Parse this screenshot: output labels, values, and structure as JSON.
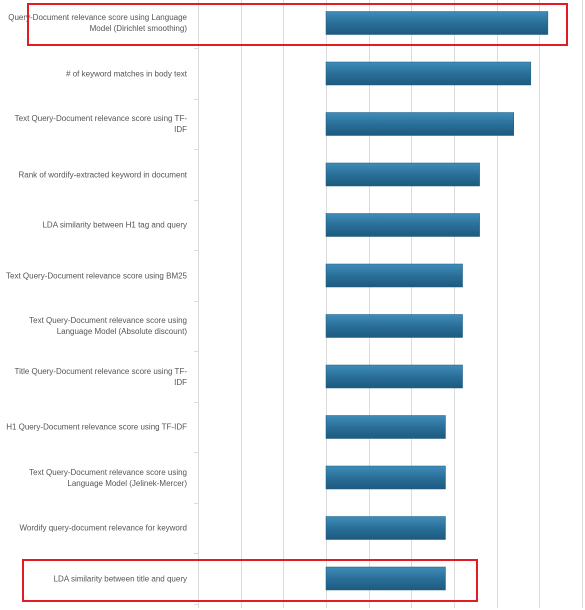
{
  "chart_data": {
    "type": "bar",
    "orientation": "horizontal",
    "categories": [
      "Query-Document relevance score using Language Model (Dirichlet smoothing)",
      "# of keyword matches in body text",
      "Text Query-Document relevance score using TF-IDF",
      "Rank of wordify-extracted keyword in document",
      "LDA similarity between H1 tag and query",
      "Text Query-Document relevance score using BM25",
      "Text Query-Document relevance score using Language Model (Absolute discount)",
      "Title Query-Document relevance score using TF-IDF",
      "H1 Query-Document relevance score using TF-IDF",
      "Text Query-Document relevance score using Language Model (Jelinek-Mercer)",
      "Wordify query-document relevance for keyword",
      "LDA similarity between title and query"
    ],
    "values": [
      0.52,
      0.48,
      0.44,
      0.36,
      0.36,
      0.32,
      0.32,
      0.32,
      0.28,
      0.28,
      0.28,
      0.28
    ],
    "xlim": [
      -0.3,
      0.6
    ],
    "grid": true,
    "bar_color": "#2a6f98",
    "highlighted_categories": [
      0,
      11
    ],
    "highlight_color": "#e31b23"
  }
}
